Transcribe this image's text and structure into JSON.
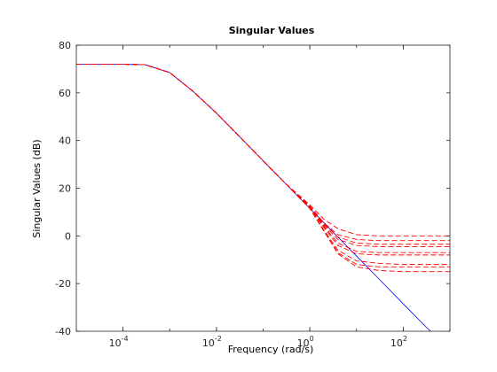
{
  "chart_data": {
    "type": "line",
    "title": "Singular Values",
    "xlabel": "Frequency (rad/s)",
    "ylabel": "Singular Values (dB)",
    "x_scale": "log",
    "xlim": [
      1e-05,
      1000
    ],
    "ylim": [
      -40,
      80
    ],
    "y_ticks": [
      -40,
      -20,
      0,
      20,
      40,
      60,
      80
    ],
    "x_ticks": [
      {
        "value": 0.0001,
        "base": "10",
        "exp": "-4"
      },
      {
        "value": 0.01,
        "base": "10",
        "exp": "-2"
      },
      {
        "value": 1,
        "base": "10",
        "exp": "0"
      },
      {
        "value": 100,
        "base": "10",
        "exp": "2"
      }
    ],
    "grid": false,
    "legend": "none",
    "colors": {
      "nominal": "#0000ff",
      "perturbed": "#ff0000"
    },
    "series": [
      {
        "style": "solid",
        "color": "#0000ff",
        "x": [
          1e-05,
          0.0001,
          0.0003,
          0.001,
          0.003,
          0.01,
          0.03,
          0.1,
          0.3,
          1,
          3,
          10,
          30,
          100,
          300,
          500
        ],
        "y": [
          72,
          72,
          71.8,
          68.5,
          61,
          51.5,
          42,
          31.5,
          22,
          11.5,
          2,
          -8.5,
          -18,
          -28.5,
          -38,
          -42
        ]
      },
      {
        "style": "dashed",
        "color": "#ff0000",
        "x": [
          1e-05,
          0.0001,
          0.0003,
          0.001,
          0.003,
          0.01,
          0.03,
          0.1,
          0.3,
          1,
          2,
          4,
          10,
          30,
          100,
          1000
        ],
        "y": [
          72,
          72,
          71.8,
          68.5,
          61,
          51.5,
          42,
          31.5,
          22,
          13,
          7,
          3,
          0.5,
          0,
          0,
          0
        ]
      },
      {
        "style": "dashed",
        "color": "#ff0000",
        "x": [
          1e-05,
          0.0001,
          0.0003,
          0.001,
          0.003,
          0.01,
          0.03,
          0.1,
          0.3,
          1,
          2,
          4,
          10,
          30,
          100,
          1000
        ],
        "y": [
          72,
          72,
          71.8,
          68.5,
          61,
          51.5,
          42,
          31.5,
          22,
          12.5,
          5.5,
          0.5,
          -1.5,
          -2,
          -2,
          -2
        ]
      },
      {
        "style": "dashed",
        "color": "#ff0000",
        "x": [
          1e-05,
          0.0001,
          0.0003,
          0.001,
          0.003,
          0.01,
          0.03,
          0.1,
          0.3,
          1,
          2,
          4,
          10,
          30,
          100,
          1000
        ],
        "y": [
          72,
          72,
          71.8,
          68.5,
          61,
          51.5,
          42,
          31.5,
          22,
          12.5,
          5,
          -0.5,
          -3,
          -3.5,
          -3.5,
          -3.5
        ]
      },
      {
        "style": "dashed",
        "color": "#ff0000",
        "x": [
          1e-05,
          0.0001,
          0.0003,
          0.001,
          0.003,
          0.01,
          0.03,
          0.1,
          0.3,
          1,
          2,
          4,
          10,
          30,
          100,
          1000
        ],
        "y": [
          72,
          72,
          71.8,
          68.5,
          61,
          51.5,
          42,
          31.5,
          22,
          12,
          4.5,
          -1.5,
          -4,
          -4.5,
          -4.5,
          -4.5
        ]
      },
      {
        "style": "dashed",
        "color": "#ff0000",
        "x": [
          1e-05,
          0.0001,
          0.0003,
          0.001,
          0.003,
          0.01,
          0.03,
          0.1,
          0.3,
          1,
          2,
          4,
          10,
          30,
          100,
          1000
        ],
        "y": [
          72,
          72,
          71.8,
          68.5,
          61,
          51.5,
          42,
          31.5,
          22,
          12,
          4,
          -3,
          -6.5,
          -7,
          -7,
          -7
        ]
      },
      {
        "style": "dashed",
        "color": "#ff0000",
        "x": [
          1e-05,
          0.0001,
          0.0003,
          0.001,
          0.003,
          0.01,
          0.03,
          0.1,
          0.3,
          1,
          2,
          4,
          10,
          30,
          100,
          1000
        ],
        "y": [
          72,
          72,
          71.8,
          68.5,
          61,
          51.5,
          42,
          31.5,
          22,
          12,
          3.5,
          -4,
          -7.5,
          -8,
          -8,
          -8
        ]
      },
      {
        "style": "dashed",
        "color": "#ff0000",
        "x": [
          1e-05,
          0.0001,
          0.0003,
          0.001,
          0.003,
          0.01,
          0.03,
          0.1,
          0.3,
          1,
          2,
          4,
          10,
          30,
          100,
          1000
        ],
        "y": [
          72,
          72,
          71.8,
          68.5,
          61,
          51.5,
          42,
          31.5,
          22,
          11.5,
          2.5,
          -6,
          -10.5,
          -11.5,
          -12,
          -12
        ]
      },
      {
        "style": "dashed",
        "color": "#ff0000",
        "x": [
          1e-05,
          0.0001,
          0.0003,
          0.001,
          0.003,
          0.01,
          0.03,
          0.1,
          0.3,
          1,
          2,
          4,
          10,
          30,
          100,
          1000
        ],
        "y": [
          72,
          72,
          71.8,
          68.5,
          61,
          51.5,
          42,
          31.5,
          22,
          11.5,
          2,
          -7,
          -12,
          -13,
          -13,
          -13
        ]
      },
      {
        "style": "dashed",
        "color": "#ff0000",
        "x": [
          1e-05,
          0.0001,
          0.0003,
          0.001,
          0.003,
          0.01,
          0.03,
          0.1,
          0.3,
          1,
          2,
          4,
          10,
          30,
          100,
          1000
        ],
        "y": [
          72,
          72,
          71.8,
          68.5,
          61,
          51.5,
          42,
          31.5,
          22,
          11.5,
          2,
          -7.5,
          -13,
          -14.5,
          -15,
          -15
        ]
      }
    ]
  }
}
